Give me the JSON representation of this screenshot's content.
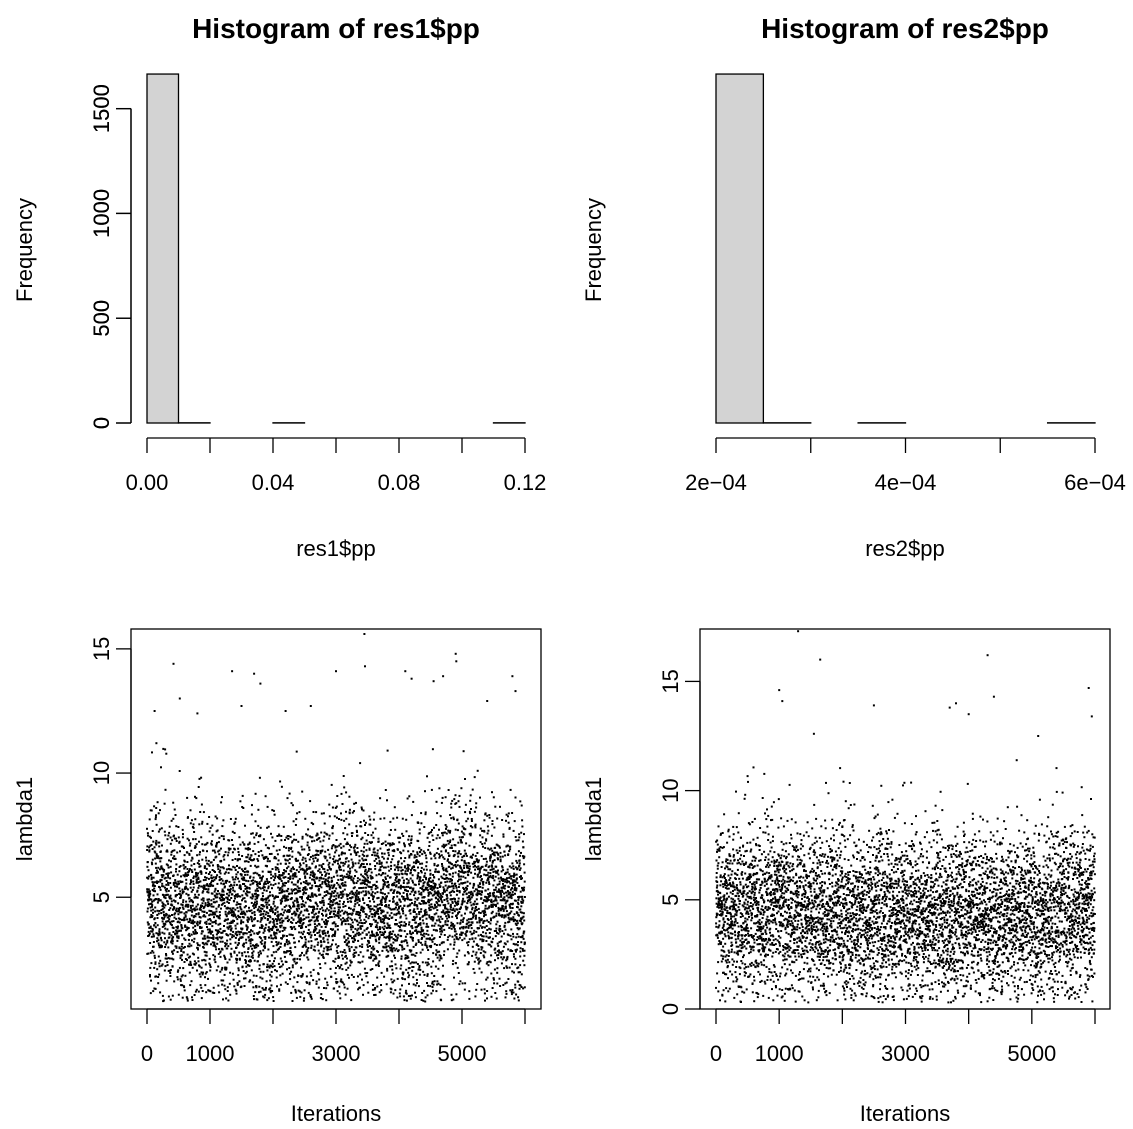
{
  "colors": {
    "bar_fill": "#d3d3d3",
    "point": "#000000",
    "axis": "#000000",
    "background": "#ffffff"
  },
  "chart_data": [
    {
      "type": "histogram",
      "title": "Histogram of res1$pp",
      "xlabel": "res1$pp",
      "ylabel": "Frequency",
      "xlim": [
        0,
        0.12
      ],
      "ylim": [
        0,
        1670
      ],
      "xticks": [
        0,
        0.02,
        0.04,
        0.06,
        0.08,
        0.1,
        0.12
      ],
      "xtick_labels": [
        "0.00",
        "",
        "0.04",
        "",
        "0.08",
        "",
        "0.12"
      ],
      "yticks": [
        0,
        500,
        1000,
        1500
      ],
      "ytick_labels": [
        "0",
        "500",
        "1000",
        "1500"
      ],
      "bins": [
        {
          "x0": 0.0,
          "x1": 0.01,
          "count": 1665
        },
        {
          "x0": 0.01,
          "x1": 0.02,
          "count": 1
        },
        {
          "x0": 0.02,
          "x1": 0.03,
          "count": 0
        },
        {
          "x0": 0.03,
          "x1": 0.04,
          "count": 0
        },
        {
          "x0": 0.04,
          "x1": 0.05,
          "count": 1
        },
        {
          "x0": 0.05,
          "x1": 0.06,
          "count": 0
        },
        {
          "x0": 0.06,
          "x1": 0.07,
          "count": 0
        },
        {
          "x0": 0.07,
          "x1": 0.08,
          "count": 0
        },
        {
          "x0": 0.08,
          "x1": 0.09,
          "count": 0
        },
        {
          "x0": 0.09,
          "x1": 0.1,
          "count": 0
        },
        {
          "x0": 0.1,
          "x1": 0.11,
          "count": 0
        },
        {
          "x0": 0.11,
          "x1": 0.12,
          "count": 1
        }
      ]
    },
    {
      "type": "histogram",
      "title": "Histogram of res2$pp",
      "xlabel": "res2$pp",
      "ylabel": "Frequency",
      "xlim": [
        0.0002,
        0.0006
      ],
      "ylim": [
        0,
        1670
      ],
      "xticks": [
        0.0002,
        0.0003,
        0.0004,
        0.0005,
        0.0006
      ],
      "xtick_labels": [
        "2e−04",
        "",
        "4e−04",
        "",
        "6e−04"
      ],
      "yticks": [
        0,
        500,
        1000,
        1500
      ],
      "ytick_labels": [
        "0",
        "500",
        "1000",
        "1500"
      ],
      "bins": [
        {
          "x0": 0.0002,
          "x1": 0.00025,
          "count": 1665
        },
        {
          "x0": 0.00025,
          "x1": 0.0003,
          "count": 1
        },
        {
          "x0": 0.0003,
          "x1": 0.00035,
          "count": 0
        },
        {
          "x0": 0.00035,
          "x1": 0.0004,
          "count": 1
        },
        {
          "x0": 0.0004,
          "x1": 0.00045,
          "count": 0
        },
        {
          "x0": 0.00045,
          "x1": 0.0005,
          "count": 0
        },
        {
          "x0": 0.0005,
          "x1": 0.00055,
          "count": 0
        },
        {
          "x0": 0.00055,
          "x1": 0.0006,
          "count": 1
        }
      ]
    },
    {
      "type": "scatter",
      "xlabel": "Iterations",
      "ylabel": "lambda1",
      "xlim": [
        0,
        6000
      ],
      "ylim": [
        0.5,
        15.8
      ],
      "xticks": [
        0,
        1000,
        2000,
        3000,
        4000,
        5000,
        6000
      ],
      "xtick_labels": [
        "0",
        "1000",
        "",
        "3000",
        "",
        "5000",
        ""
      ],
      "yticks": [
        5,
        10,
        15
      ],
      "ytick_labels": [
        "5",
        "10",
        "15"
      ],
      "n_points": 6000,
      "center_curve": [
        [
          0,
          5.0
        ],
        [
          1000,
          4.6
        ],
        [
          2000,
          4.4
        ],
        [
          3000,
          5.0
        ],
        [
          4000,
          4.5
        ],
        [
          5000,
          5.3
        ],
        [
          6000,
          4.5
        ]
      ],
      "spread_sd": 1.8,
      "outliers": [
        [
          120,
          12.5
        ],
        [
          150,
          11.2
        ],
        [
          420,
          14.4
        ],
        [
          520,
          13.0
        ],
        [
          800,
          12.4
        ],
        [
          1350,
          14.1
        ],
        [
          1500,
          12.7
        ],
        [
          1700,
          14.0
        ],
        [
          1800,
          13.6
        ],
        [
          2200,
          12.5
        ],
        [
          2600,
          12.7
        ],
        [
          3000,
          14.1
        ],
        [
          3450,
          15.6
        ],
        [
          3460,
          14.3
        ],
        [
          4100,
          14.1
        ],
        [
          4200,
          13.8
        ],
        [
          4550,
          13.7
        ],
        [
          4700,
          13.9
        ],
        [
          4900,
          14.8
        ],
        [
          4910,
          14.5
        ],
        [
          5400,
          12.9
        ],
        [
          5800,
          13.9
        ],
        [
          5850,
          13.3
        ]
      ],
      "seed": 7
    },
    {
      "type": "scatter",
      "xlabel": "Iterations",
      "ylabel": "lambda1",
      "xlim": [
        0,
        6000
      ],
      "ylim": [
        0,
        17.4
      ],
      "xticks": [
        0,
        1000,
        2000,
        3000,
        4000,
        5000,
        6000
      ],
      "xtick_labels": [
        "0",
        "1000",
        "",
        "3000",
        "",
        "5000",
        ""
      ],
      "yticks": [
        0,
        5,
        10,
        15
      ],
      "ytick_labels": [
        "0",
        "5",
        "10",
        "15"
      ],
      "n_points": 6000,
      "center_curve": [
        [
          0,
          4.4
        ],
        [
          1000,
          4.6
        ],
        [
          2000,
          4.3
        ],
        [
          3000,
          4.4
        ],
        [
          4000,
          4.2
        ],
        [
          5000,
          4.3
        ],
        [
          6000,
          4.4
        ]
      ],
      "spread_sd": 1.9,
      "outliers": [
        [
          1300,
          17.3
        ],
        [
          1650,
          16.0
        ],
        [
          1000,
          14.6
        ],
        [
          1050,
          14.1
        ],
        [
          2500,
          13.9
        ],
        [
          3700,
          13.8
        ],
        [
          3800,
          14.0
        ],
        [
          4300,
          16.2
        ],
        [
          4400,
          14.3
        ],
        [
          5900,
          14.7
        ],
        [
          5950,
          13.4
        ],
        [
          4000,
          13.5
        ],
        [
          1550,
          12.6
        ],
        [
          5100,
          12.5
        ]
      ],
      "seed": 13
    }
  ]
}
